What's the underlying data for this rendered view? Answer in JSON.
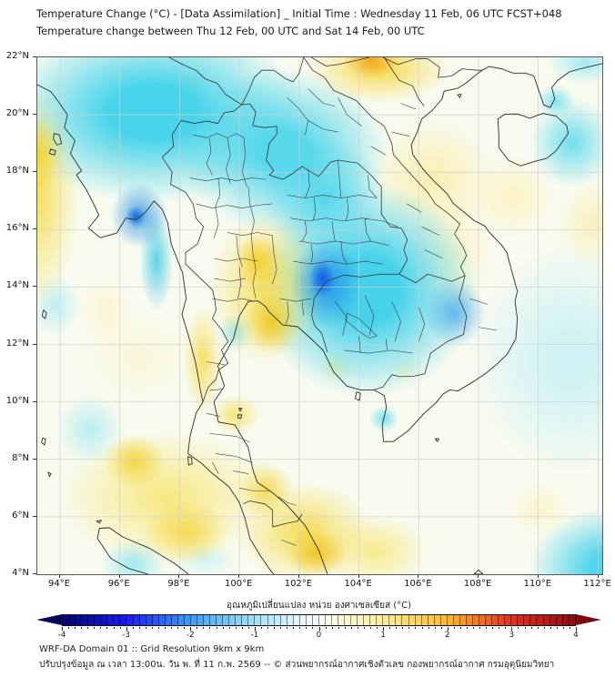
{
  "header": {
    "title": "Temperature Change (°C) - [Data Assimilation] _ Initial Time : Wednesday 11 Feb, 06 UTC FCST+048",
    "subtitle": "Temperature change between Thu 12 Feb, 00 UTC and Sat 14 Feb, 00 UTC"
  },
  "map": {
    "lat_ticks": [
      "22°N",
      "20°N",
      "18°N",
      "16°N",
      "14°N",
      "12°N",
      "10°N",
      "8°N",
      "6°N",
      "4°N"
    ],
    "lon_ticks": [
      "94°E",
      "96°E",
      "98°E",
      "100°E",
      "102°E",
      "104°E",
      "106°E",
      "108°E",
      "110°E",
      "112°E"
    ]
  },
  "colorbar": {
    "title": "อุณหภูมิเปลี่ยนแปลง หน่วย องศาเซลเซียส (°C)",
    "tick_labels": [
      "-4",
      "-3",
      "-2",
      "-1",
      "0",
      "1",
      "2",
      "3",
      "4"
    ],
    "min": -4,
    "max": 4,
    "step": 0.1,
    "stops": [
      {
        "v": -4,
        "c": "#05056e"
      },
      {
        "v": -3,
        "c": "#1b1bf0"
      },
      {
        "v": -2,
        "c": "#3f9ff2"
      },
      {
        "v": -1,
        "c": "#a5e2f7"
      },
      {
        "v": 0,
        "c": "#ffffff"
      },
      {
        "v": 1,
        "c": "#fdef9e"
      },
      {
        "v": 2,
        "c": "#fcb92e"
      },
      {
        "v": 3,
        "c": "#e5301f"
      },
      {
        "v": 4,
        "c": "#8f0a12"
      }
    ]
  },
  "footer": {
    "line1": "WRF-DA Domain 01 :: Grid Resolution 9km x 9km",
    "line2": "ปรับปรุงข้อมูล ณ เวลา 13:00น. วัน พ. ที่ 11 ก.พ. 2569 -- © ส่วนพยากรณ์อากาศเชิงตัวเลข กองพยากรณ์อากาศ กรมอุตุนิยมวิทยา"
  },
  "chart_data": {
    "type": "heatmap",
    "title": "Temperature Change (°C) - [Data Assimilation] _ Initial Time : Wednesday 11 Feb, 06 UTC FCST+048",
    "subtitle": "Temperature change between Thu 12 Feb, 00 UTC and Sat 14 Feb, 00 UTC",
    "x_ticks": [
      "94°E",
      "96°E",
      "98°E",
      "100°E",
      "102°E",
      "104°E",
      "106°E",
      "108°E",
      "110°E",
      "112°E"
    ],
    "y_ticks": [
      "22°N",
      "20°N",
      "18°N",
      "16°N",
      "14°N",
      "12°N",
      "10°N",
      "8°N",
      "6°N",
      "4°N"
    ],
    "colorbar_label": "อุณหภูมิเปลี่ยนแปลง หน่วย องศาเซลเซียส (°C)",
    "colorbar_range": [
      -4,
      4
    ],
    "colorbar_ticks": [
      -4,
      -3,
      -2,
      -1,
      0,
      1,
      2,
      3,
      4
    ],
    "grid": true,
    "notable_regions": [
      {
        "area": "NE Thailand / Cambodia border near 102.8E 14.3N",
        "value_c": -3.0
      },
      {
        "area": "Myanmar coast near 96.6E 16.6N",
        "value_c": -2.5
      },
      {
        "area": "Broad NE Thailand, Laos, Cambodia",
        "value_c": -1.5
      },
      {
        "area": "North Thailand / upper Myanmar (cyan field)",
        "value_c": -1.0
      },
      {
        "area": "East of Hainan and SE corner of domain",
        "value_c": -1.0
      },
      {
        "area": "Bay of Bengal west edge 93.5E 14-19N",
        "value_c": 1.5
      },
      {
        "area": "Central Thailand 100-101E 13-15N",
        "value_c": 1.5
      },
      {
        "area": "Northern Vietnam 103.5-106E 21-22N",
        "value_c": 2.0
      },
      {
        "area": "Southern peninsula / lower Gulf 100-104E 4-7N",
        "value_c": 1.5
      },
      {
        "area": "Vietnam central coast and west of Hainan",
        "value_c": 0.5
      }
    ]
  }
}
